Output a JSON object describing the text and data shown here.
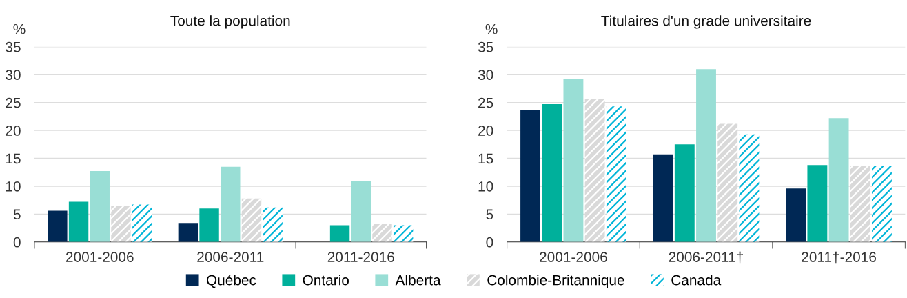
{
  "chart_data": [
    {
      "type": "bar",
      "title": "Toute la population",
      "ylabel": "%",
      "categories": [
        "2001-2006",
        "2006-2011",
        "2011-2016"
      ],
      "ylim": [
        0,
        35
      ],
      "yticks": [
        0,
        5,
        10,
        15,
        20,
        25,
        30,
        35
      ],
      "grid": "y",
      "legend": "bottom",
      "series": [
        {
          "name": "Québec",
          "color": "#002855",
          "values": [
            5.6,
            3.4,
            null
          ]
        },
        {
          "name": "Ontario",
          "color": "#00b09b",
          "values": [
            7.2,
            6.0,
            3.0
          ]
        },
        {
          "name": "Alberta",
          "color": "#99ded5",
          "values": [
            12.7,
            13.5,
            10.9
          ]
        },
        {
          "name": "Colombie-Britannique",
          "color": "#d9d9d9",
          "values": [
            6.4,
            7.8,
            3.2
          ]
        },
        {
          "name": "Canada",
          "color": "#00b5d8",
          "values": [
            6.7,
            6.2,
            3.0
          ]
        }
      ]
    },
    {
      "type": "bar",
      "title": "Titulaires d'un grade universitaire",
      "ylabel": "%",
      "categories": [
        "2001-2006",
        "2006-2011†",
        "2011†-2016"
      ],
      "ylim": [
        0,
        35
      ],
      "yticks": [
        0,
        5,
        10,
        15,
        20,
        25,
        30,
        35
      ],
      "grid": "y",
      "series": [
        {
          "color": "#002855",
          "values": [
            23.6,
            15.7,
            9.6
          ]
        },
        {
          "color": "#00b09b",
          "values": [
            24.7,
            17.5,
            13.8
          ]
        },
        {
          "color": "#99ded5",
          "values": [
            29.3,
            31.0,
            22.2
          ]
        },
        {
          "color": "#d9d9d9",
          "values": [
            25.6,
            21.2,
            13.6
          ]
        },
        {
          "color": "#00b5d8",
          "values": [
            24.3,
            19.3,
            13.7
          ]
        }
      ]
    }
  ]
}
